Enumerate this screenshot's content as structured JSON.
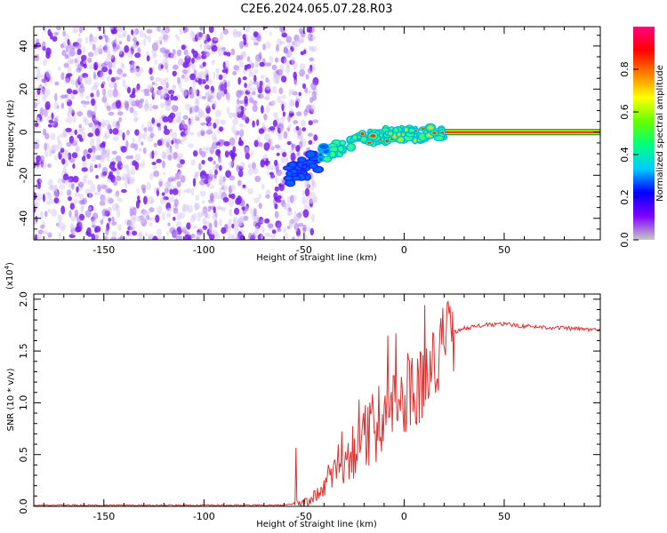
{
  "title": "C2E6.2024.065.07.28.R03",
  "chart_data": [
    {
      "type": "heatmap",
      "id": "spectrogram",
      "xlabel": "Height of straight line (km)",
      "ylabel": "Frequency (Hz)",
      "xlim": [
        -185,
        98
      ],
      "ylim": [
        -50,
        49
      ],
      "xticks": [
        -150,
        -100,
        -50,
        0,
        50
      ],
      "yticks": [
        -40,
        -20,
        0,
        20,
        40
      ],
      "noise_region_x": [
        -185,
        -50
      ],
      "signal_ridge": [
        {
          "x": -58,
          "y": -21
        },
        {
          "x": -50,
          "y": -17
        },
        {
          "x": -42,
          "y": -12
        },
        {
          "x": -35,
          "y": -8
        },
        {
          "x": -27,
          "y": -5
        },
        {
          "x": -20,
          "y": -3
        },
        {
          "x": -12,
          "y": -2
        },
        {
          "x": -5,
          "y": -1
        },
        {
          "x": 2,
          "y": -1
        },
        {
          "x": 8,
          "y": -2
        },
        {
          "x": 14,
          "y": 0
        },
        {
          "x": 20,
          "y": 0
        }
      ],
      "steady_line": {
        "x_start": 15,
        "x_end": 98,
        "y": 0
      },
      "colorbar": {
        "label": "Normalized spectral amplitude",
        "range": [
          0.0,
          1.0
        ],
        "ticks": [
          "0.0",
          "0.2",
          "0.4",
          "0.6",
          "0.8"
        ],
        "colormap": [
          "#c8c8c8",
          "#8000ff",
          "#0000ff",
          "#00ccff",
          "#00ff80",
          "#66ff00",
          "#ffff00",
          "#ff8000",
          "#ff0000",
          "#ff0080"
        ]
      }
    },
    {
      "type": "line",
      "id": "snr",
      "xlabel": "Height of straight line (km)",
      "ylabel": "SNR (10 * v/v)",
      "y_multiplier": "(x10",
      "y_multiplier_exp": "4",
      "y_multiplier_close": ")",
      "xlim": [
        -185,
        98
      ],
      "ylim": [
        0.0,
        2.05
      ],
      "xticks": [
        -150,
        -100,
        -50,
        0,
        50
      ],
      "yticks": [
        "0.0",
        "0.5",
        "1.0",
        "1.5",
        "2.0"
      ],
      "series_color": "#e03030",
      "series": [
        {
          "x": [
            -185,
            -150,
            -100,
            -60,
            -50,
            -45,
            -40,
            -35,
            -30,
            -25,
            -20,
            -15,
            -10,
            -5,
            0,
            5,
            10,
            15,
            20,
            25,
            30,
            40,
            50,
            60,
            70,
            80,
            90,
            98
          ],
          "y": [
            0.01,
            0.01,
            0.01,
            0.01,
            0.03,
            0.08,
            0.18,
            0.35,
            0.45,
            0.55,
            0.65,
            0.75,
            0.95,
            1.0,
            1.05,
            1.15,
            1.2,
            1.4,
            1.6,
            1.68,
            1.72,
            1.75,
            1.76,
            1.74,
            1.73,
            1.72,
            1.71,
            1.7
          ]
        }
      ]
    }
  ]
}
